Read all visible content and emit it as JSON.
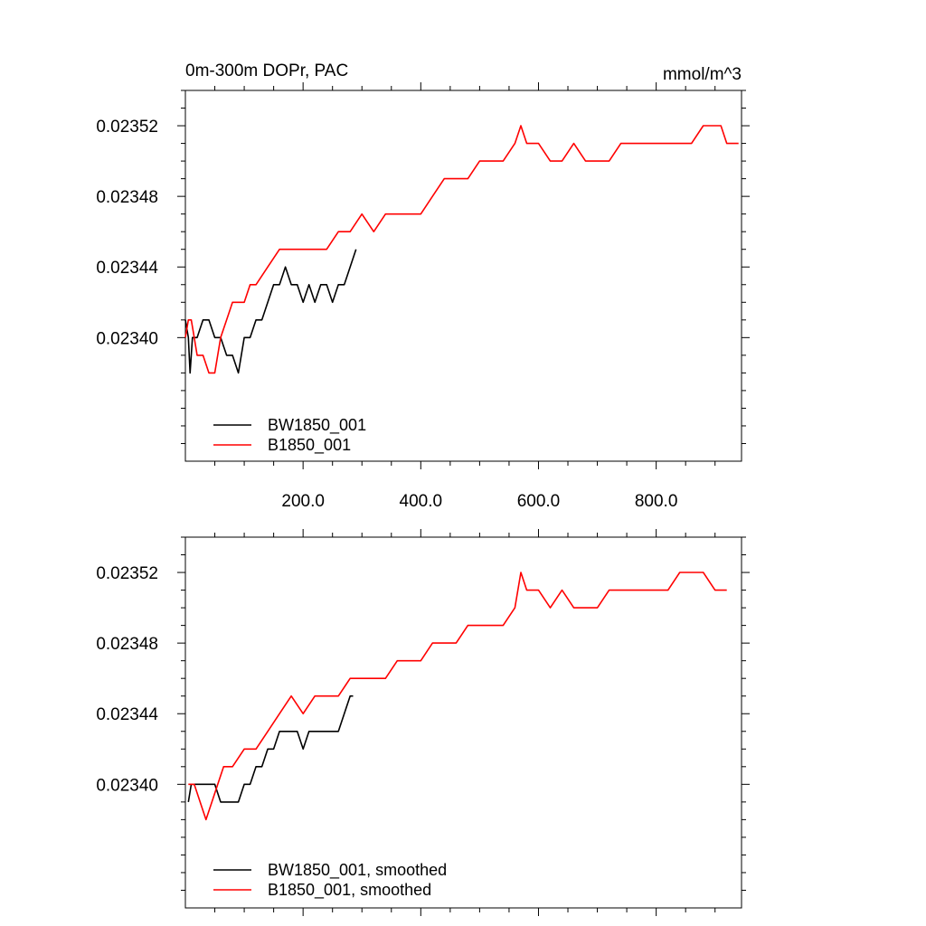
{
  "chart_data": [
    {
      "type": "line",
      "title": "0m-300m DOPr, PAC",
      "units": "mmol/m^3",
      "xlim": [
        0,
        945
      ],
      "ylim": [
        0.02335,
        0.23538
      ],
      "ylim_note": "",
      "ylim_data": [
        0.02333,
        0.02354
      ],
      "xticks": [
        200,
        400,
        600,
        800
      ],
      "xtick_labels": [
        "200.0",
        "400.0",
        "600.0",
        "800.0"
      ],
      "yticks": [
        0.0234,
        0.02344,
        0.02348,
        0.02352
      ],
      "ytick_labels": [
        "0.02340",
        "0.02344",
        "0.02348",
        "0.02352"
      ],
      "legend_position": "bottom-left",
      "series": [
        {
          "name": "BW1850_001",
          "color": "#000000",
          "points": [
            [
              0,
              0.02341
            ],
            [
              5,
              0.0234
            ],
            [
              8,
              0.02338
            ],
            [
              12,
              0.0234
            ],
            [
              20,
              0.0234
            ],
            [
              30,
              0.02341
            ],
            [
              40,
              0.02341
            ],
            [
              50,
              0.0234
            ],
            [
              60,
              0.0234
            ],
            [
              70,
              0.02339
            ],
            [
              80,
              0.02339
            ],
            [
              90,
              0.02338
            ],
            [
              100,
              0.0234
            ],
            [
              110,
              0.0234
            ],
            [
              120,
              0.02341
            ],
            [
              130,
              0.02341
            ],
            [
              140,
              0.02342
            ],
            [
              150,
              0.02343
            ],
            [
              160,
              0.02343
            ],
            [
              170,
              0.02344
            ],
            [
              180,
              0.02343
            ],
            [
              190,
              0.02343
            ],
            [
              200,
              0.02342
            ],
            [
              210,
              0.02343
            ],
            [
              220,
              0.02342
            ],
            [
              230,
              0.02343
            ],
            [
              240,
              0.02343
            ],
            [
              250,
              0.02342
            ],
            [
              260,
              0.02343
            ],
            [
              270,
              0.02343
            ],
            [
              280,
              0.02344
            ],
            [
              290,
              0.02345
            ]
          ]
        },
        {
          "name": "B1850_001",
          "color": "#ff0000",
          "points": [
            [
              0,
              0.0234
            ],
            [
              5,
              0.02341
            ],
            [
              10,
              0.02341
            ],
            [
              15,
              0.0234
            ],
            [
              20,
              0.02339
            ],
            [
              30,
              0.02339
            ],
            [
              40,
              0.02338
            ],
            [
              50,
              0.02338
            ],
            [
              60,
              0.0234
            ],
            [
              70,
              0.02341
            ],
            [
              80,
              0.02342
            ],
            [
              90,
              0.02342
            ],
            [
              100,
              0.02342
            ],
            [
              110,
              0.02343
            ],
            [
              120,
              0.02343
            ],
            [
              140,
              0.02344
            ],
            [
              160,
              0.02345
            ],
            [
              180,
              0.02345
            ],
            [
              200,
              0.02345
            ],
            [
              220,
              0.02345
            ],
            [
              240,
              0.02345
            ],
            [
              260,
              0.02346
            ],
            [
              280,
              0.02346
            ],
            [
              300,
              0.02347
            ],
            [
              320,
              0.02346
            ],
            [
              340,
              0.02347
            ],
            [
              360,
              0.02347
            ],
            [
              380,
              0.02347
            ],
            [
              400,
              0.02347
            ],
            [
              420,
              0.02348
            ],
            [
              440,
              0.02349
            ],
            [
              460,
              0.02349
            ],
            [
              480,
              0.02349
            ],
            [
              500,
              0.0235
            ],
            [
              520,
              0.0235
            ],
            [
              540,
              0.0235
            ],
            [
              560,
              0.02351
            ],
            [
              570,
              0.02352
            ],
            [
              580,
              0.02351
            ],
            [
              600,
              0.02351
            ],
            [
              620,
              0.0235
            ],
            [
              640,
              0.0235
            ],
            [
              660,
              0.02351
            ],
            [
              680,
              0.0235
            ],
            [
              700,
              0.0235
            ],
            [
              720,
              0.0235
            ],
            [
              740,
              0.02351
            ],
            [
              760,
              0.02351
            ],
            [
              780,
              0.02351
            ],
            [
              800,
              0.02351
            ],
            [
              820,
              0.02351
            ],
            [
              840,
              0.02351
            ],
            [
              860,
              0.02351
            ],
            [
              880,
              0.02352
            ],
            [
              900,
              0.02352
            ],
            [
              910,
              0.02352
            ],
            [
              920,
              0.02351
            ],
            [
              930,
              0.02351
            ],
            [
              940,
              0.02351
            ]
          ]
        }
      ]
    },
    {
      "type": "line",
      "xlim": [
        0,
        945
      ],
      "ylim": [
        0.02333,
        0.02354
      ],
      "yticks": [
        0.0234,
        0.02344,
        0.02348,
        0.02352
      ],
      "ytick_labels": [
        "0.02340",
        "0.02344",
        "0.02348",
        "0.02352"
      ],
      "legend_position": "bottom-left",
      "series": [
        {
          "name": "BW1850_001, smoothed",
          "color": "#000000",
          "points": [
            [
              5,
              0.02339
            ],
            [
              10,
              0.0234
            ],
            [
              20,
              0.0234
            ],
            [
              30,
              0.0234
            ],
            [
              40,
              0.0234
            ],
            [
              50,
              0.0234
            ],
            [
              60,
              0.02339
            ],
            [
              70,
              0.02339
            ],
            [
              80,
              0.02339
            ],
            [
              90,
              0.02339
            ],
            [
              100,
              0.0234
            ],
            [
              110,
              0.0234
            ],
            [
              120,
              0.02341
            ],
            [
              130,
              0.02341
            ],
            [
              140,
              0.02342
            ],
            [
              150,
              0.02342
            ],
            [
              160,
              0.02343
            ],
            [
              170,
              0.02343
            ],
            [
              180,
              0.02343
            ],
            [
              190,
              0.02343
            ],
            [
              200,
              0.02342
            ],
            [
              210,
              0.02343
            ],
            [
              220,
              0.02343
            ],
            [
              230,
              0.02343
            ],
            [
              240,
              0.02343
            ],
            [
              250,
              0.02343
            ],
            [
              260,
              0.02343
            ],
            [
              270,
              0.02344
            ],
            [
              280,
              0.02345
            ],
            [
              285,
              0.02345
            ]
          ]
        },
        {
          "name": "B1850_001, smoothed",
          "color": "#ff0000",
          "points": [
            [
              5,
              0.0234
            ],
            [
              15,
              0.0234
            ],
            [
              25,
              0.02339
            ],
            [
              35,
              0.02338
            ],
            [
              45,
              0.02339
            ],
            [
              55,
              0.0234
            ],
            [
              65,
              0.02341
            ],
            [
              80,
              0.02341
            ],
            [
              100,
              0.02342
            ],
            [
              120,
              0.02342
            ],
            [
              140,
              0.02343
            ],
            [
              160,
              0.02344
            ],
            [
              180,
              0.02345
            ],
            [
              200,
              0.02344
            ],
            [
              220,
              0.02345
            ],
            [
              240,
              0.02345
            ],
            [
              260,
              0.02345
            ],
            [
              280,
              0.02346
            ],
            [
              300,
              0.02346
            ],
            [
              320,
              0.02346
            ],
            [
              340,
              0.02346
            ],
            [
              360,
              0.02347
            ],
            [
              380,
              0.02347
            ],
            [
              400,
              0.02347
            ],
            [
              420,
              0.02348
            ],
            [
              440,
              0.02348
            ],
            [
              460,
              0.02348
            ],
            [
              480,
              0.02349
            ],
            [
              500,
              0.02349
            ],
            [
              520,
              0.02349
            ],
            [
              540,
              0.02349
            ],
            [
              560,
              0.0235
            ],
            [
              570,
              0.02352
            ],
            [
              580,
              0.02351
            ],
            [
              600,
              0.02351
            ],
            [
              620,
              0.0235
            ],
            [
              640,
              0.02351
            ],
            [
              660,
              0.0235
            ],
            [
              680,
              0.0235
            ],
            [
              700,
              0.0235
            ],
            [
              720,
              0.02351
            ],
            [
              740,
              0.02351
            ],
            [
              760,
              0.02351
            ],
            [
              780,
              0.02351
            ],
            [
              800,
              0.02351
            ],
            [
              820,
              0.02351
            ],
            [
              840,
              0.02352
            ],
            [
              860,
              0.02352
            ],
            [
              880,
              0.02352
            ],
            [
              900,
              0.02351
            ],
            [
              910,
              0.02351
            ],
            [
              920,
              0.02351
            ]
          ]
        }
      ]
    }
  ]
}
